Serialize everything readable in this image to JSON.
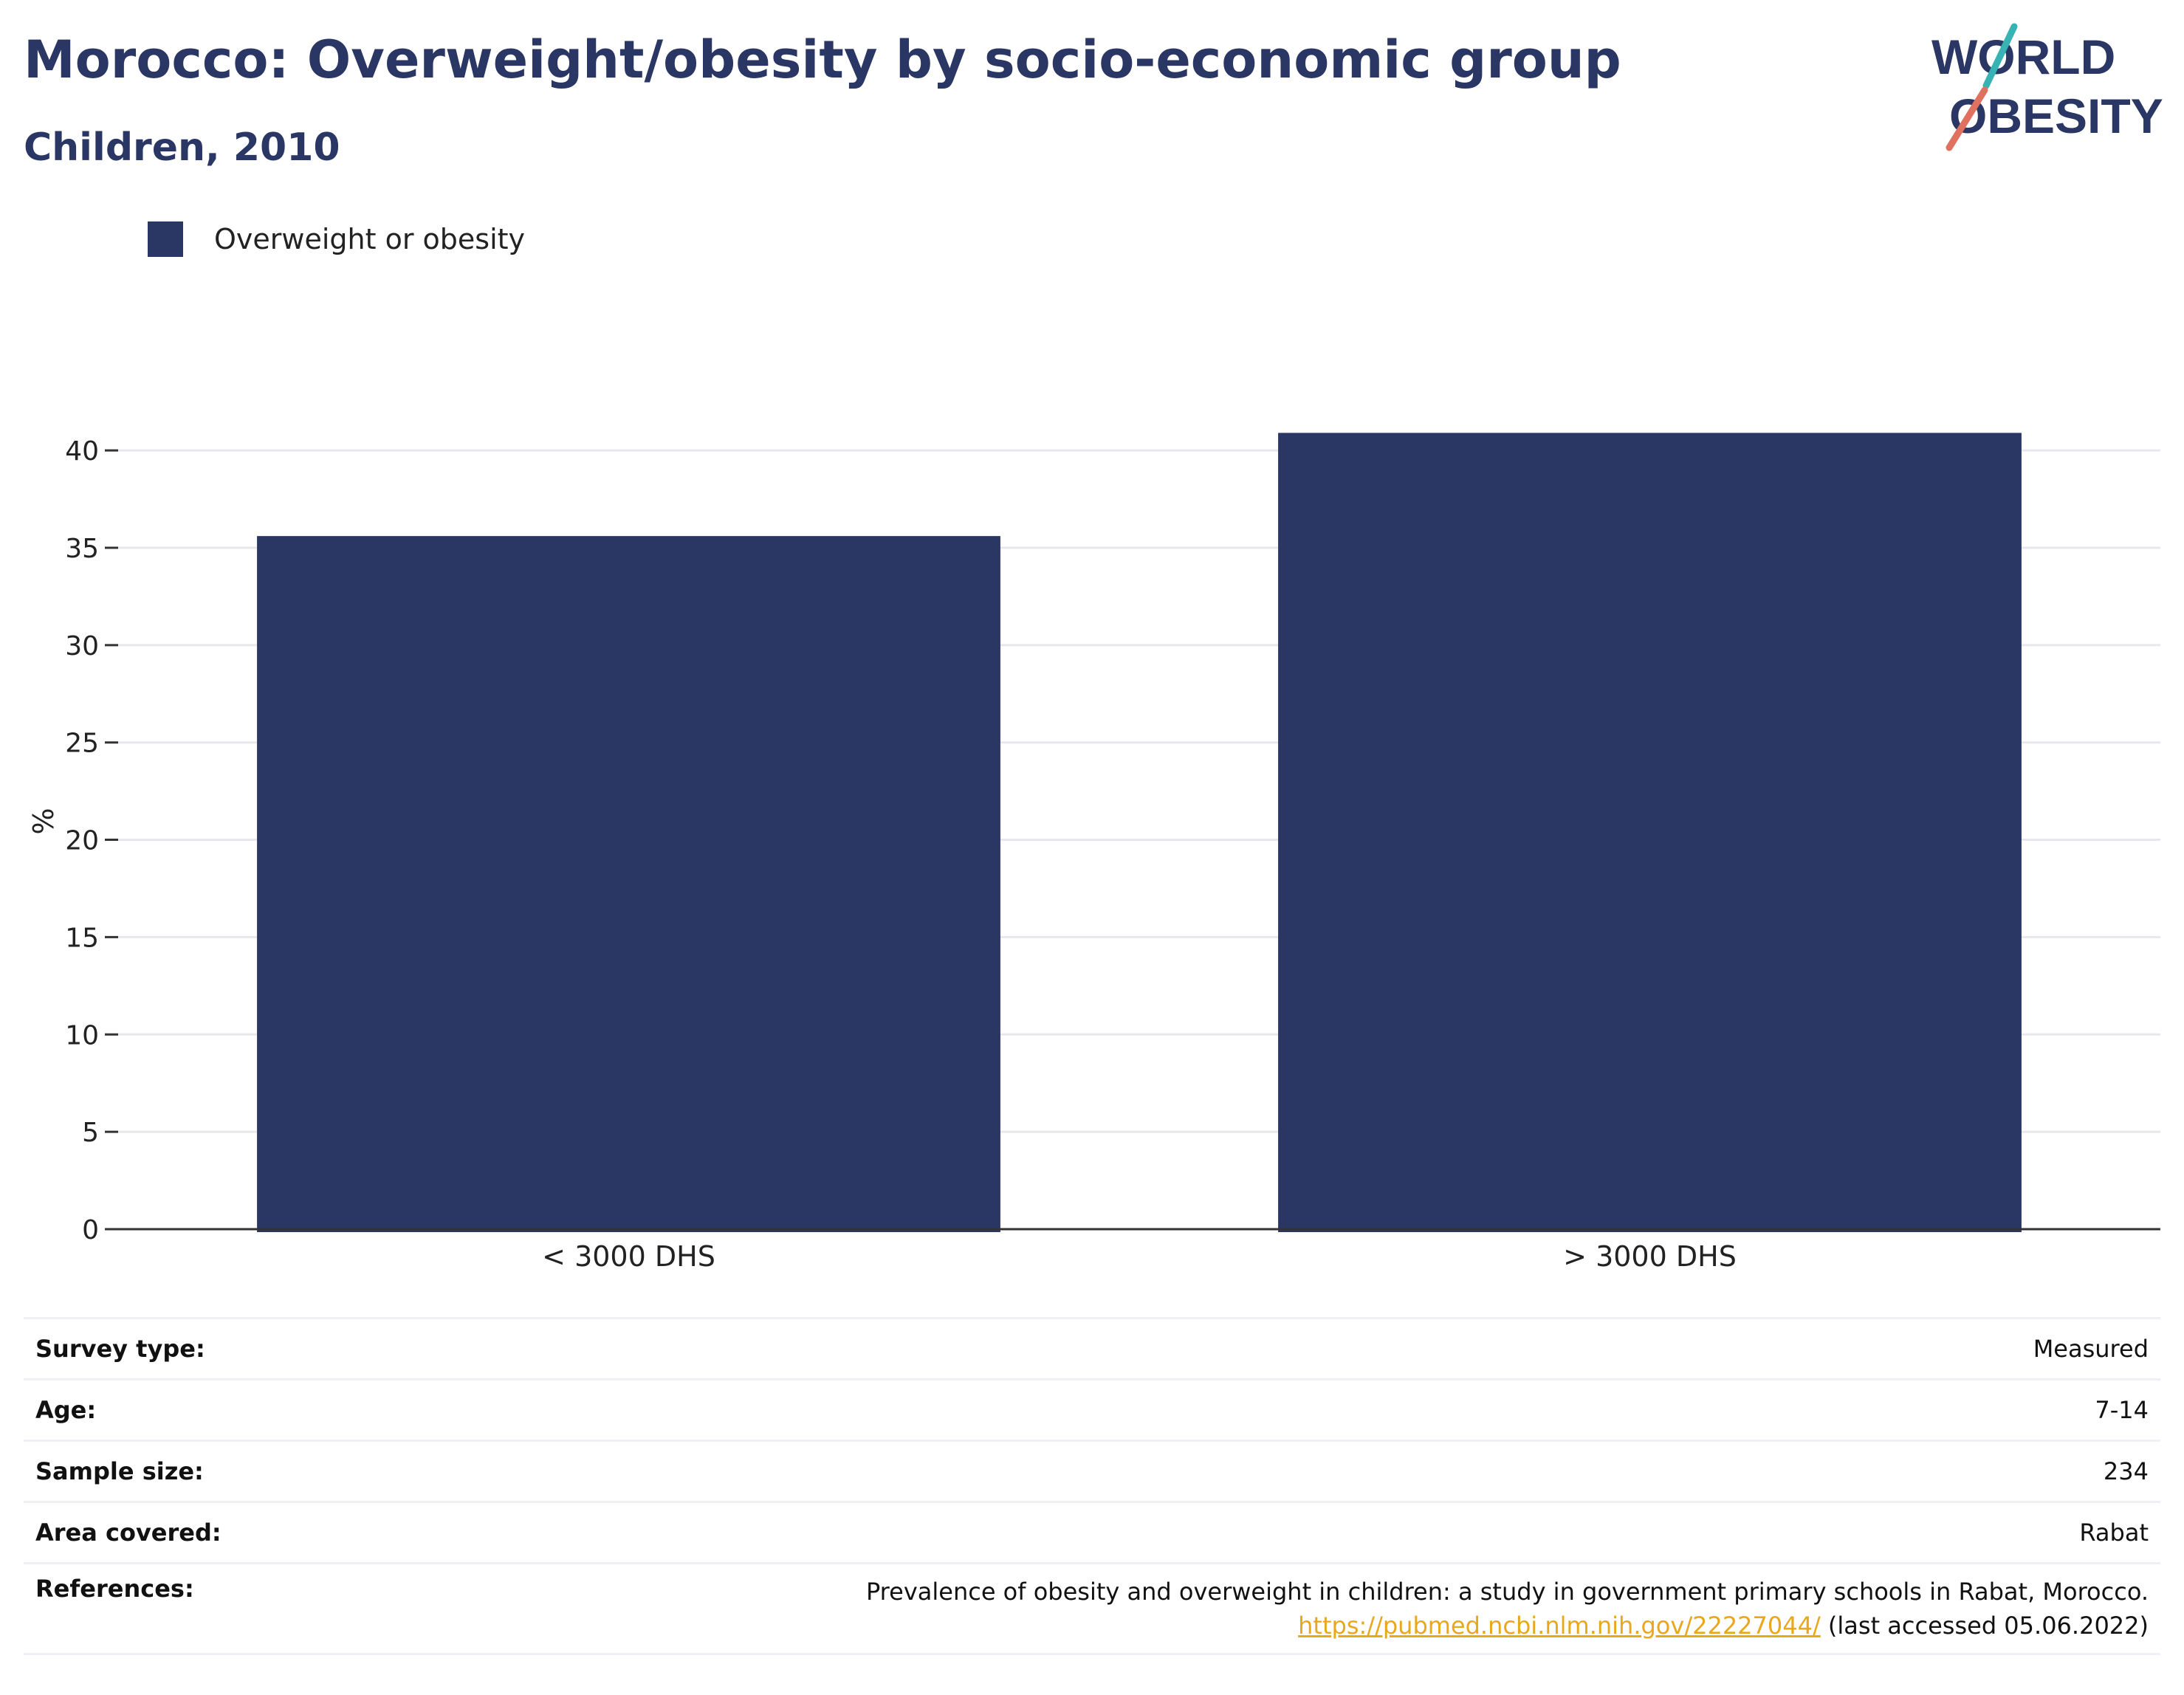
{
  "header": {
    "title": "Morocco: Overweight/obesity by socio-economic group",
    "subtitle": "Children, 2010"
  },
  "logo": {
    "line1": "WORLD",
    "line2": "OBESITY",
    "colors": {
      "navy": "#2a3663",
      "teal": "#38b3b3",
      "coral": "#e07060"
    }
  },
  "legend": {
    "label": "Overweight or obesity",
    "color": "#2a3663"
  },
  "chart_data": {
    "type": "bar",
    "categories": [
      "< 3000 DHS",
      "> 3000 DHS"
    ],
    "series": [
      {
        "name": "Overweight or obesity",
        "values": [
          35.6,
          40.9
        ],
        "color": "#2a3663"
      }
    ],
    "ylabel": "%",
    "ylim": [
      0,
      41.9
    ],
    "yticks": [
      0,
      5,
      10,
      15,
      20,
      25,
      30,
      35,
      40
    ],
    "grid": true,
    "legend_position": "top-left"
  },
  "info": {
    "survey_type": {
      "label": "Survey type:",
      "value": "Measured"
    },
    "age": {
      "label": "Age:",
      "value": "7-14"
    },
    "sample_size": {
      "label": "Sample size:",
      "value": "234"
    },
    "area_covered": {
      "label": "Area covered:",
      "value": "Rabat"
    },
    "references": {
      "label": "References:",
      "text": "Prevalence of obesity and overweight in children: a study in government primary schools in Rabat, Morocco.",
      "link": "https://pubmed.ncbi.nlm.nih.gov/22227044/",
      "suffix": " (last accessed 05.06.2022)"
    }
  }
}
